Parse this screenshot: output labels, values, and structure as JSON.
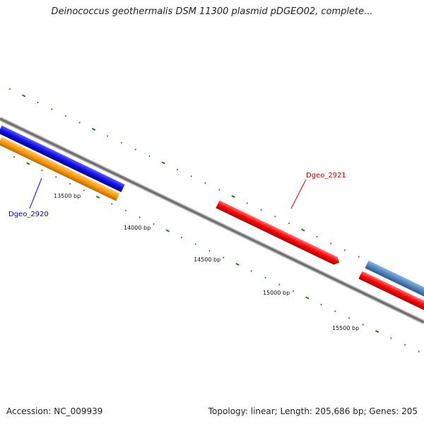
{
  "header": {
    "title": "Deinococcus geothermalis DSM 11300 plasmid pDGEO02, complete..."
  },
  "footer": {
    "accession": "Accession: NC_009939",
    "summary": "Topology: linear; Length: 205,686 bp; Genes: 205"
  },
  "colors": {
    "backbone": "#7a7a7a",
    "tick": "#1a7a1a",
    "blue_gene": "#1010ee",
    "orange_gene": "#ff9900",
    "red_gene": "#ff0000",
    "steel_gene": "#4f86c0"
  },
  "scale_labels": [
    {
      "bp": 13500,
      "text": "13500 bp"
    },
    {
      "bp": 14000,
      "text": "14000 bp"
    },
    {
      "bp": 14500,
      "text": "14500 bp"
    },
    {
      "bp": 15000,
      "text": "15000 bp"
    },
    {
      "bp": 15500,
      "text": "15500 bp"
    }
  ],
  "gene_labels": [
    {
      "name": "Dgeo_2920",
      "color": "#0000cc"
    },
    {
      "name": "Dgeo_2921",
      "color": "#cc0000"
    }
  ]
}
